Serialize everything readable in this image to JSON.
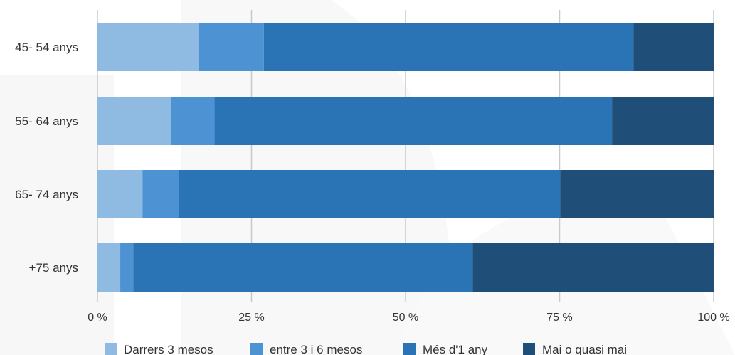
{
  "chart_data": {
    "type": "bar",
    "orientation": "horizontal",
    "stacked": true,
    "categories": [
      "45- 54 anys",
      "55- 64 anys",
      "65- 74 anys",
      "+75 anys"
    ],
    "series": [
      {
        "name": "Darrers 3 mesos",
        "color": "#8fbbe2",
        "values": [
          16.5,
          12,
          7.3,
          3.7
        ]
      },
      {
        "name": "entre 3 i 6 mesos",
        "color": "#4d93d3",
        "values": [
          10.5,
          7,
          5.9,
          2.1
        ]
      },
      {
        "name": "Més d'1 any",
        "color": "#2a74b5",
        "values": [
          60,
          64.5,
          61.9,
          55.1
        ]
      },
      {
        "name": "Mai o quasi mai",
        "color": "#1f4e78",
        "values": [
          13,
          16.5,
          24.9,
          39.1
        ]
      }
    ],
    "xlim": [
      0,
      100
    ],
    "xticks": [
      "0 %",
      "25 %",
      "50 %",
      "75 %",
      "100 %"
    ],
    "grid": true,
    "legend_position": "bottom"
  }
}
